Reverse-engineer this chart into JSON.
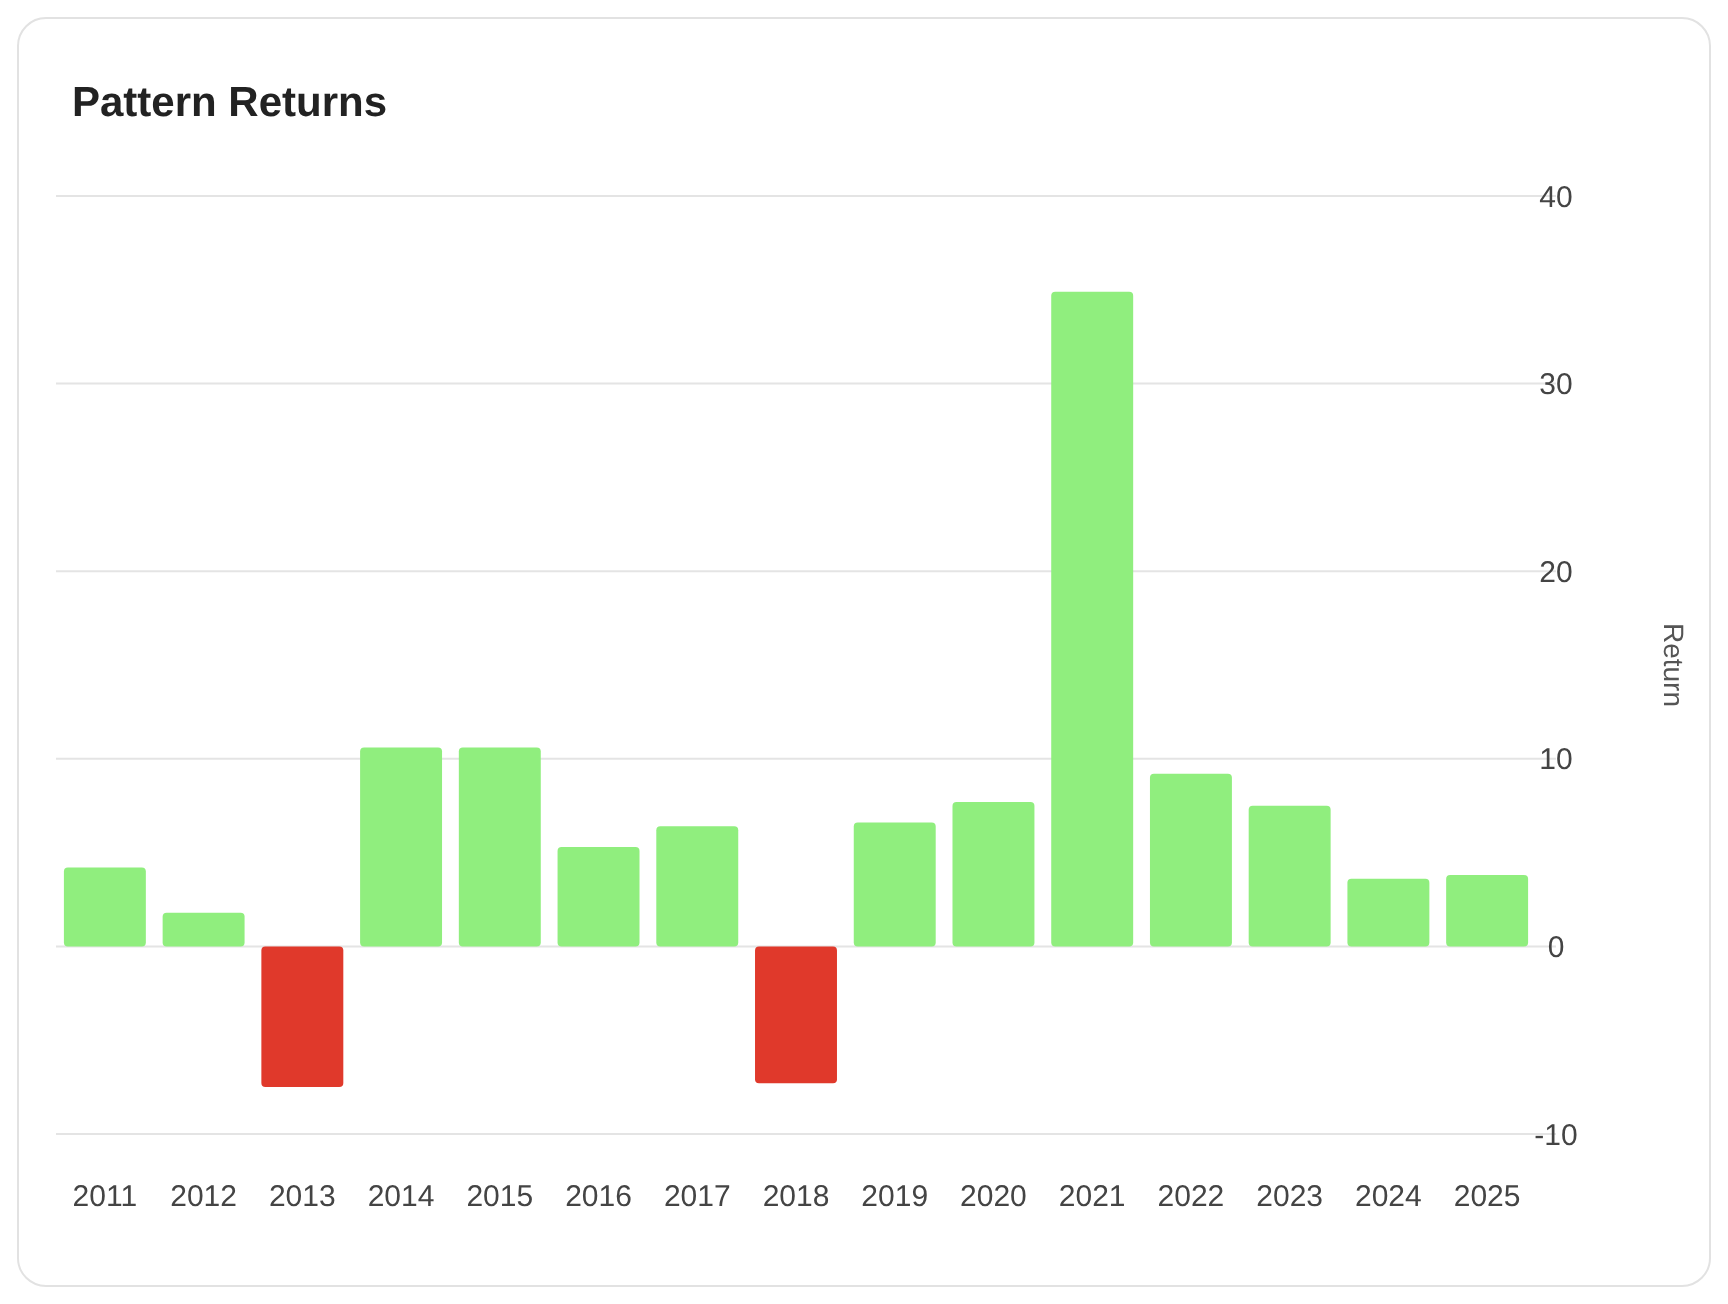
{
  "chart_data": {
    "type": "bar",
    "title": "Pattern Returns",
    "ylabel": "Return",
    "categories": [
      "2011",
      "2012",
      "2013",
      "2014",
      "2015",
      "2016",
      "2017",
      "2018",
      "2019",
      "2020",
      "2021",
      "2022",
      "2023",
      "2024",
      "2025"
    ],
    "values": [
      4.2,
      1.8,
      -7.5,
      10.6,
      10.6,
      5.3,
      6.4,
      -7.3,
      6.6,
      7.7,
      34.9,
      9.2,
      7.5,
      3.6,
      3.8
    ],
    "colors": [
      "#90ee7e",
      "#90ee7e",
      "#e0392b",
      "#90ee7e",
      "#90ee7e",
      "#90ee7e",
      "#90ee7e",
      "#e0392b",
      "#90ee7e",
      "#90ee7e",
      "#90ee7e",
      "#90ee7e",
      "#90ee7e",
      "#90ee7e",
      "#90ee7e"
    ],
    "ylim": [
      -10,
      40
    ],
    "yticks": [
      -10,
      0,
      10,
      20,
      30,
      40
    ],
    "grid": "y"
  }
}
